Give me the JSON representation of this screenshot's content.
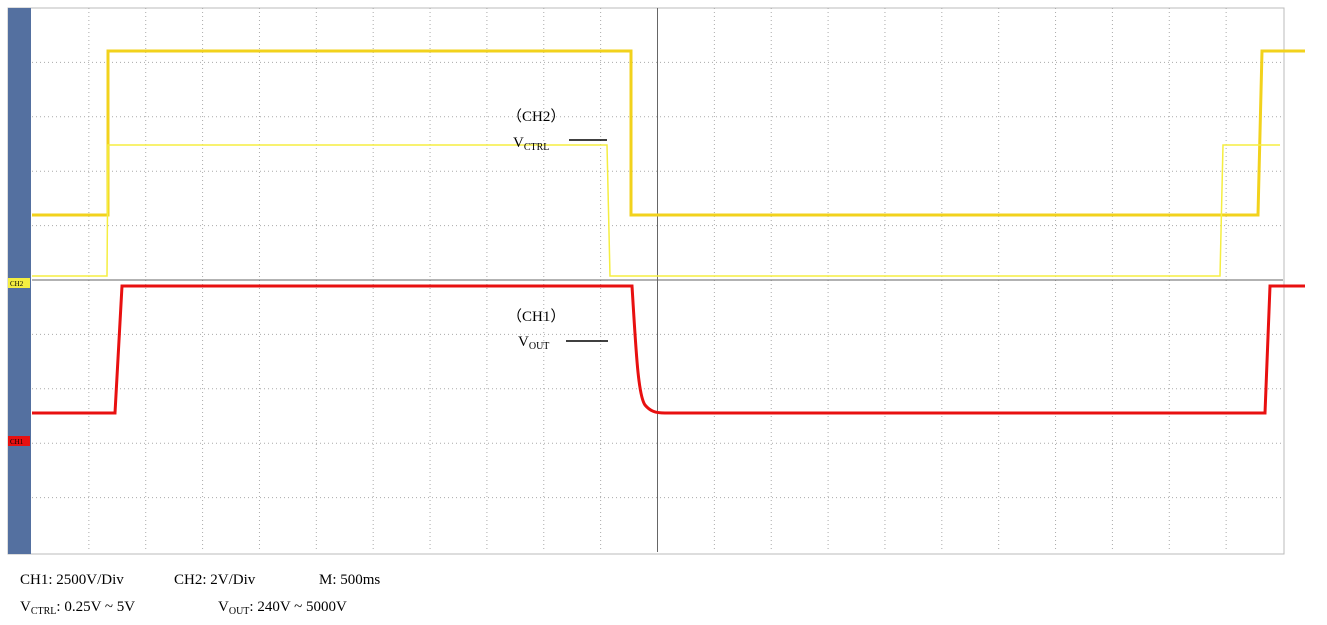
{
  "screen": {
    "ch2_marker": "CH2",
    "ch1_marker": "CH1"
  },
  "annotations": {
    "ch2_label": "（CH2）",
    "ch2_symbol": "V",
    "ch2_subscript": "CTRL",
    "ch1_label": "（CH1）",
    "ch1_symbol": "V",
    "ch1_subscript": "OUT"
  },
  "caption": {
    "line1": [
      "CH1: 2500V/Div",
      "CH2: 2V/Div",
      "M: 500ms"
    ],
    "ctrl_symbol": "V",
    "ctrl_subscript": "CTRL",
    "ctrl_range": ": 0.25V ~ 5V",
    "out_symbol": "V",
    "out_subscript": "OUT",
    "out_range": ": 240V ~ 5000V"
  }
}
